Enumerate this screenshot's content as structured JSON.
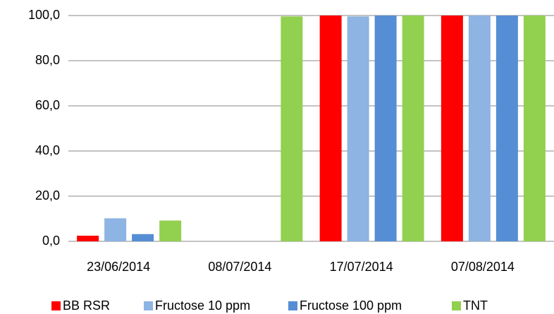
{
  "chart_data": {
    "type": "bar",
    "categories": [
      "23/06/2014",
      "08/07/2014",
      "17/07/2014",
      "07/08/2014"
    ],
    "series": [
      {
        "name": "BB RSR",
        "color": "#ff0000",
        "values": [
          2.5,
          0,
          100,
          100
        ]
      },
      {
        "name": "Fructose 10 ppm",
        "color": "#8db4e2",
        "values": [
          10.2,
          0,
          99.6,
          100
        ]
      },
      {
        "name": "Fructose 100 ppm",
        "color": "#558ed5",
        "values": [
          3.2,
          0,
          100,
          100
        ]
      },
      {
        "name": "TNT",
        "color": "#92d050",
        "values": [
          9.2,
          99.6,
          100,
          100
        ]
      }
    ],
    "ylim": [
      0,
      100
    ],
    "yticks": [
      {
        "value": 0,
        "label": "0,0"
      },
      {
        "value": 20,
        "label": "20,0"
      },
      {
        "value": 40,
        "label": "40,0"
      },
      {
        "value": 60,
        "label": "60,0"
      },
      {
        "value": 80,
        "label": "80,0"
      },
      {
        "value": 100,
        "label": "100,0"
      }
    ],
    "grid": true,
    "legend": "bottom"
  }
}
